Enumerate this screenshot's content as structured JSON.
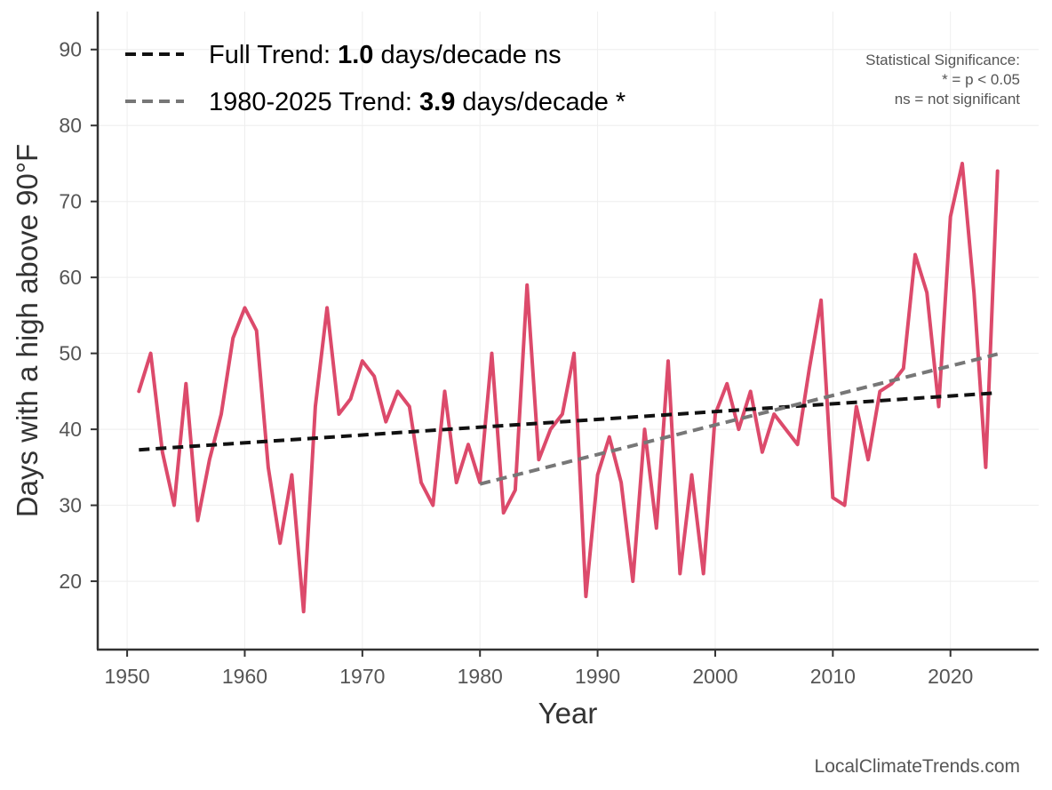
{
  "chart_data": {
    "type": "line",
    "xlabel": "Year",
    "ylabel": "Days with a high above 90°F",
    "xlim": [
      1947.5,
      2027.5
    ],
    "ylim": [
      11,
      95
    ],
    "x_ticks": [
      1950,
      1960,
      1970,
      1980,
      1990,
      2000,
      2010,
      2020
    ],
    "y_ticks": [
      20,
      30,
      40,
      50,
      60,
      70,
      80,
      90
    ],
    "grid": true,
    "legend_position": "top-left",
    "series": [
      {
        "color": "#dc4a6b",
        "x": [
          1951,
          1952,
          1953,
          1954,
          1955,
          1956,
          1957,
          1958,
          1959,
          1960,
          1961,
          1962,
          1963,
          1964,
          1965,
          1966,
          1967,
          1968,
          1969,
          1970,
          1971,
          1972,
          1973,
          1974,
          1975,
          1976,
          1977,
          1978,
          1979,
          1980,
          1981,
          1982,
          1983,
          1984,
          1985,
          1986,
          1987,
          1988,
          1989,
          1990,
          1991,
          1992,
          1993,
          1994,
          1995,
          1996,
          1997,
          1998,
          1999,
          2000,
          2001,
          2002,
          2003,
          2004,
          2005,
          2006,
          2007,
          2008,
          2009,
          2010,
          2011,
          2012,
          2013,
          2014,
          2015,
          2016,
          2017,
          2018,
          2019,
          2020,
          2021,
          2022,
          2023,
          2024
        ],
        "values": [
          45,
          50,
          37,
          30,
          46,
          28,
          36,
          42,
          52,
          56,
          53,
          35,
          25,
          34,
          16,
          43,
          56,
          42,
          44,
          49,
          47,
          41,
          45,
          43,
          33,
          30,
          45,
          33,
          38,
          33,
          50,
          29,
          32,
          59,
          36,
          40,
          42,
          50,
          18,
          34,
          39,
          33,
          20,
          40,
          27,
          49,
          21,
          34,
          21,
          42,
          46,
          40,
          45,
          37,
          42,
          40,
          38,
          48,
          57,
          31,
          30,
          43,
          36,
          45,
          46,
          48,
          63,
          58,
          43,
          68,
          75,
          58,
          35,
          74
        ]
      }
    ],
    "trends": [
      {
        "label": "Full Trend:",
        "value": "1.0",
        "suffix": "days/decade ns",
        "color": "#111111",
        "x": [
          1951,
          2024
        ],
        "y": [
          37.3,
          44.8
        ]
      },
      {
        "label": "1980-2025 Trend:",
        "value": "3.9",
        "suffix": "days/decade *",
        "color": "#777777",
        "x": [
          1980,
          2024
        ],
        "y": [
          32.8,
          49.9
        ]
      }
    ],
    "annotations": {
      "significance_title": "Statistical Significance:",
      "significance_line1": "* = p < 0.05",
      "significance_line2": "ns = not significant"
    },
    "credit": "LocalClimateTrends.com"
  }
}
